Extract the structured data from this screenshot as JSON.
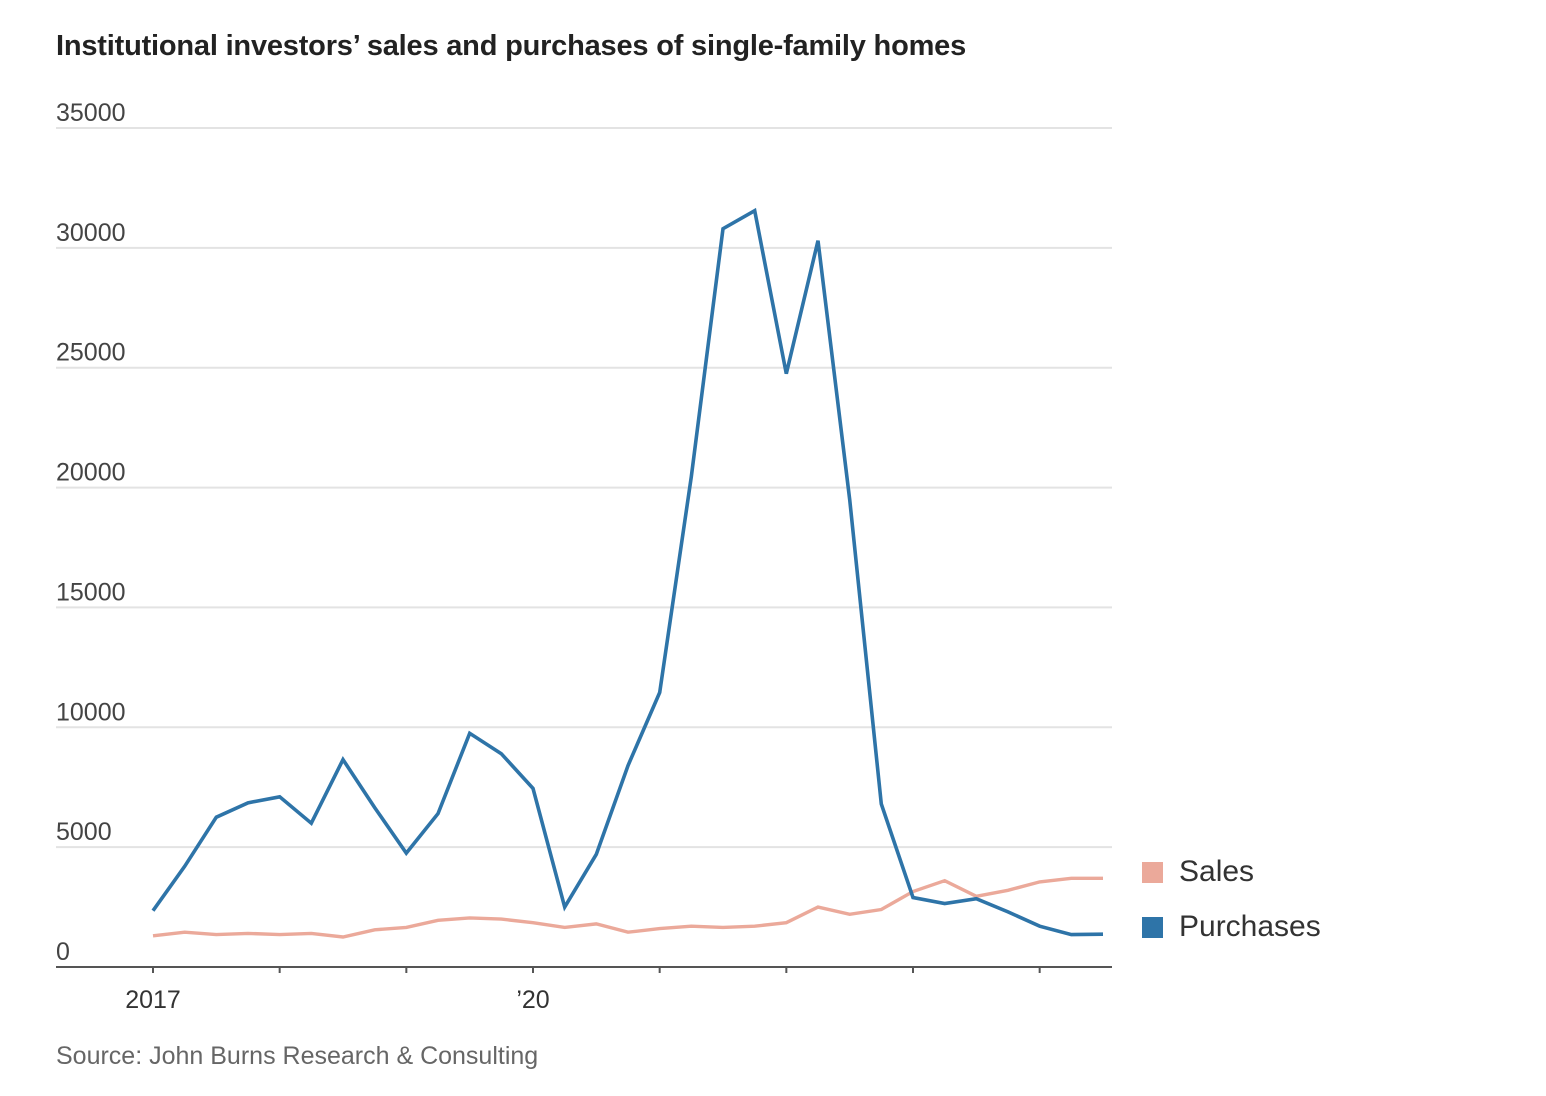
{
  "title": "Institutional investors’ sales and purchases of single-family homes",
  "source": "Source: John Burns Research & Consulting",
  "chart_data": {
    "type": "line",
    "title": "Institutional investors’ sales and purchases of single-family homes",
    "xlabel": "",
    "ylabel": "",
    "ylim": [
      0,
      35000
    ],
    "yticks": [
      0,
      5000,
      10000,
      15000,
      20000,
      25000,
      30000,
      35000
    ],
    "ytick_labels": [
      "0",
      "5000",
      "10000",
      "15000",
      "20000",
      "25000",
      "30000",
      "35000"
    ],
    "xlim": [
      2017.0,
      2024.5
    ],
    "xticks": [
      2017,
      2018,
      2019,
      2020,
      2021,
      2022,
      2023,
      2024
    ],
    "xtick_labels": [
      {
        "x": 2017,
        "label": "2017"
      },
      {
        "x": 2020,
        "label": "’20"
      }
    ],
    "grid": true,
    "legend_position": "right",
    "x": [
      2017.0,
      2017.25,
      2017.5,
      2017.75,
      2018.0,
      2018.25,
      2018.5,
      2018.75,
      2019.0,
      2019.25,
      2019.5,
      2019.75,
      2020.0,
      2020.25,
      2020.5,
      2020.75,
      2021.0,
      2021.25,
      2021.5,
      2021.75,
      2022.0,
      2022.25,
      2022.5,
      2022.75,
      2023.0,
      2023.25,
      2023.5,
      2023.75,
      2024.0,
      2024.25,
      2024.5
    ],
    "series": [
      {
        "name": "Sales",
        "color": "#EBA99A",
        "values": [
          1300,
          1450,
          1350,
          1400,
          1350,
          1400,
          1250,
          1550,
          1650,
          1950,
          2050,
          2000,
          1850,
          1650,
          1800,
          1450,
          1600,
          1700,
          1650,
          1700,
          1850,
          2500,
          2200,
          2400,
          3150,
          3600,
          2950,
          3200,
          3550,
          3700,
          3700
        ]
      },
      {
        "name": "Purchases",
        "color": "#2E74A8",
        "values": [
          2350,
          4200,
          6250,
          6850,
          7100,
          6000,
          8650,
          6650,
          4750,
          6400,
          9750,
          8900,
          7450,
          2500,
          4700,
          8400,
          11450,
          20450,
          30800,
          31550,
          24750,
          30300,
          19500,
          6800,
          2900,
          2650,
          2850,
          2300,
          1700,
          1350,
          1370
        ]
      }
    ]
  },
  "legend": [
    {
      "label": "Sales",
      "color": "#EBA99A"
    },
    {
      "label": "Purchases",
      "color": "#2E74A8"
    }
  ]
}
